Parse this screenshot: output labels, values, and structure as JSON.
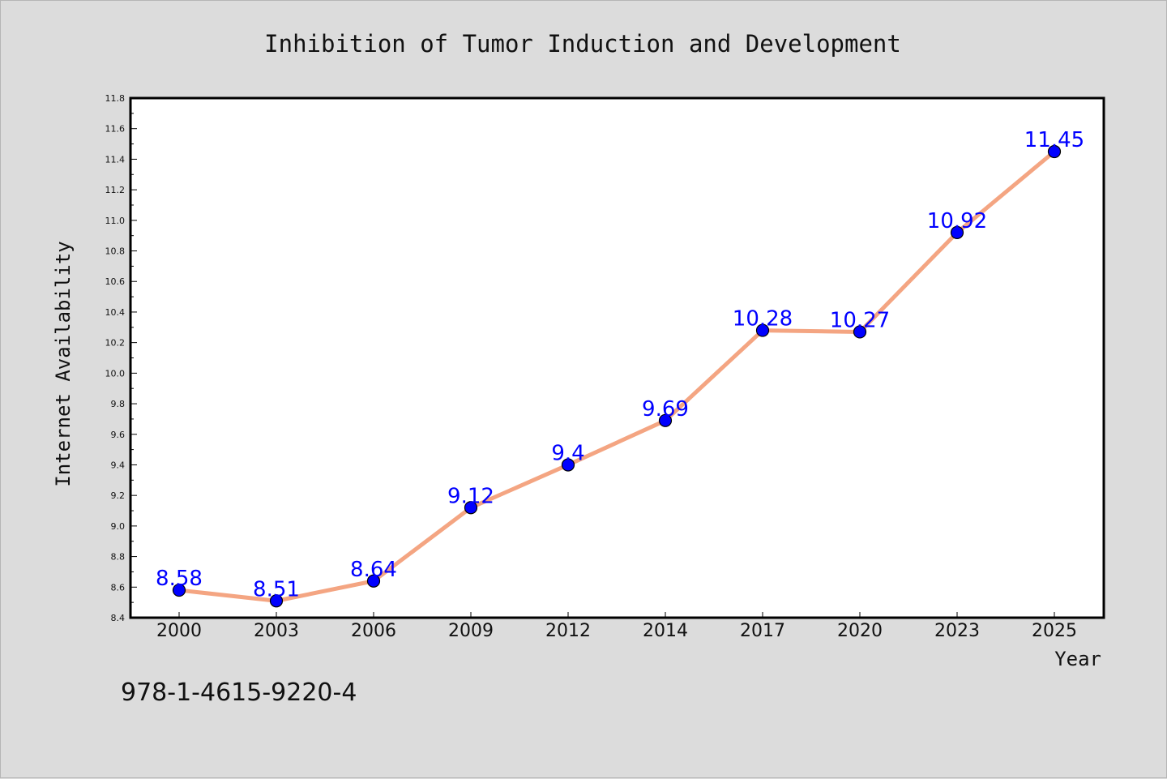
{
  "colors": {
    "background": "#dcdcdc",
    "plot_background": "#ffffff",
    "line": "#f4a582",
    "marker": "#0000ff",
    "data_label": "#0000ff",
    "text": "#111111"
  },
  "footer": {
    "isbn": "978-1-4615-9220-4"
  },
  "chart_data": {
    "type": "line",
    "title": "Inhibition of Tumor Induction and Development",
    "xlabel": "Year",
    "ylabel": "Internet Availability",
    "categories": [
      "2000",
      "2003",
      "2006",
      "2009",
      "2012",
      "2014",
      "2017",
      "2020",
      "2023",
      "2025"
    ],
    "series": [
      {
        "values": [
          8.58,
          8.51,
          8.64,
          9.12,
          9.4,
          9.69,
          10.28,
          10.27,
          10.92,
          11.45
        ],
        "labels": [
          "8.58",
          "8.51",
          "8.64",
          "9.12",
          "9.4",
          "9.69",
          "10.28",
          "10.27",
          "10.92",
          "11.45"
        ]
      }
    ],
    "ylim": [
      8.4,
      11.8
    ],
    "yticks": [
      "8.4",
      "8.6",
      "8.8",
      "9.0",
      "9.2",
      "9.4",
      "9.6",
      "9.8",
      "10.0",
      "10.2",
      "10.4",
      "10.6",
      "10.8",
      "11.0",
      "11.2",
      "11.4",
      "11.6",
      "11.8"
    ],
    "grid": false,
    "legend": "none",
    "marker": "circle",
    "data_labels": true
  }
}
